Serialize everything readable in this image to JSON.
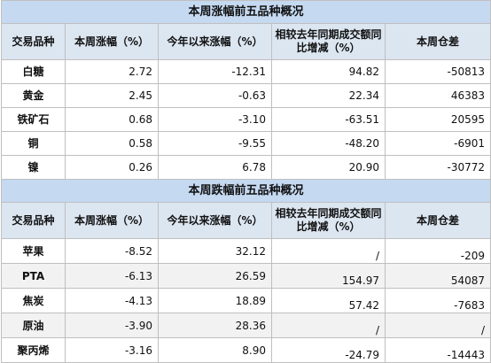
{
  "sections": [
    {
      "title": "本周涨幅前五品种概况",
      "headers": [
        "交易品种",
        "本周涨幅（%）",
        "今年以来涨幅（%）",
        "相较去年同期成交额同比增减（%）",
        "本周仓差"
      ],
      "rows": [
        [
          "白糖",
          "2.72",
          "-12.31",
          "94.82",
          "-50813"
        ],
        [
          "黄金",
          "2.45",
          "-0.63",
          "22.34",
          "46383"
        ],
        [
          "铁矿石",
          "0.68",
          "-3.10",
          "-63.51",
          "20595"
        ],
        [
          "铜",
          "0.58",
          "-9.55",
          "-48.20",
          "-6901"
        ],
        [
          "镍",
          "0.26",
          "6.78",
          "20.90",
          "-30772"
        ]
      ]
    },
    {
      "title": "本周跌幅前五品种概况",
      "headers": [
        "交易品种",
        "本周涨幅（%）",
        "今年以来涨幅（%）",
        "相较去年同期成交额同比增减（%）",
        "本周仓差"
      ],
      "rows": [
        [
          "苹果",
          "-8.52",
          "32.12",
          "/",
          "-209"
        ],
        [
          "PTA",
          "-6.13",
          "26.59",
          "154.97",
          "54087"
        ],
        [
          "焦炭",
          "-4.13",
          "18.89",
          "57.42",
          "-7683"
        ],
        [
          "原油",
          "-3.90",
          "28.36",
          "/",
          "/"
        ],
        [
          "聚丙烯",
          "-3.16",
          "8.90",
          "-24.79",
          "-14443"
        ]
      ]
    }
  ]
}
